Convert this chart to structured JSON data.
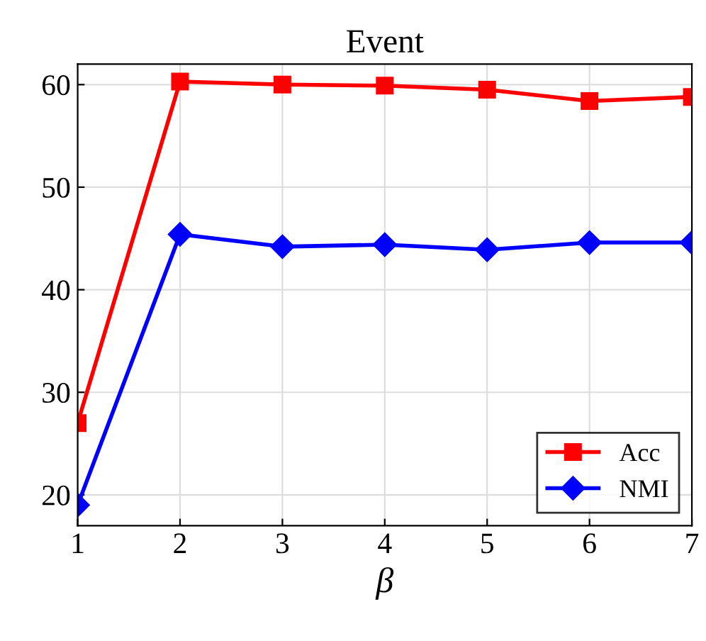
{
  "chart_data": {
    "type": "line",
    "title": "Event",
    "xlabel": "β",
    "x": [
      1,
      2,
      3,
      4,
      5,
      6,
      7
    ],
    "series": [
      {
        "name": "Acc",
        "color": "#ff0000",
        "marker": "square",
        "values": [
          27.0,
          60.3,
          60.0,
          59.9,
          59.5,
          58.4,
          58.8
        ]
      },
      {
        "name": "NMI",
        "color": "#0000ff",
        "marker": "diamond",
        "values": [
          19.0,
          45.4,
          44.2,
          44.4,
          43.9,
          44.6,
          44.6
        ]
      }
    ],
    "xlim": [
      1,
      7
    ],
    "xticks": [
      1,
      2,
      3,
      4,
      5,
      6,
      7
    ],
    "ylim": [
      17,
      62
    ],
    "yticks": [
      20,
      30,
      40,
      50,
      60
    ],
    "grid": true,
    "legend": "bottom right",
    "line_style": "solid"
  }
}
